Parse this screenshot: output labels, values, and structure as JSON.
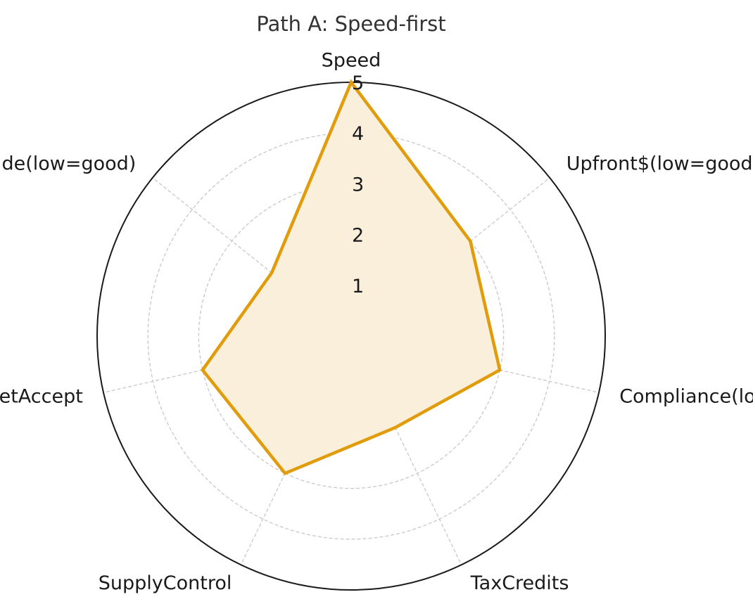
{
  "chart_data": {
    "type": "radar",
    "title": "Path A: Speed-first",
    "axes": [
      "Speed",
      "Upfront$(low=good)",
      "Compliance(low=good)",
      "TaxCredits",
      "SupplyControl",
      "MarketAccept",
      "Geo/Trade(low=good)"
    ],
    "series": [
      {
        "values": [
          5,
          3.0,
          3.0,
          2.0,
          3.0,
          3.0,
          2.0
        ],
        "color": "#e09c0b"
      }
    ],
    "r_range": [
      0,
      5
    ],
    "r_ticks": [
      "1",
      "2",
      "3",
      "4",
      "5"
    ],
    "grid": true,
    "fill_color": "#faefdb",
    "outer_ring_color": "#1a1a1a"
  }
}
